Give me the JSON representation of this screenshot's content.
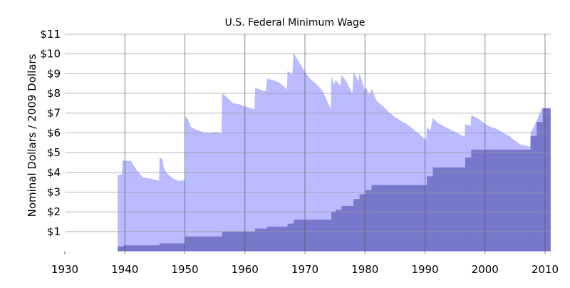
{
  "chart_data": {
    "type": "area",
    "title": "U.S. Federal Minimum Wage",
    "ylabel": "Nominal Dollars  /  2009 Dollars",
    "xlabel": "",
    "xlim": [
      1930,
      2011
    ],
    "ylim": [
      0,
      11
    ],
    "grid": true,
    "x_ticks": [
      "1930",
      "1940",
      "1950",
      "1960",
      "1970",
      "1980",
      "1990",
      "2000",
      "2010"
    ],
    "y_ticks": [
      "$1",
      "$2",
      "$3",
      "$4",
      "$5",
      "$6",
      "$7",
      "$8",
      "$9",
      "$10",
      "$11"
    ],
    "colors": {
      "real": "#babaff",
      "nominal": "#7777cc",
      "grid": "#999999"
    },
    "series": [
      {
        "key": "real_2009_dollars",
        "style": "line-area",
        "points": [
          [
            1938.8,
            3.85
          ],
          [
            1939.5,
            3.9
          ],
          [
            1939.6,
            4.6
          ],
          [
            1941,
            4.58
          ],
          [
            1942,
            4.1
          ],
          [
            1943,
            3.75
          ],
          [
            1944,
            3.7
          ],
          [
            1945.7,
            3.58
          ],
          [
            1945.8,
            4.75
          ],
          [
            1946.3,
            4.65
          ],
          [
            1946.5,
            4.2
          ],
          [
            1947,
            3.95
          ],
          [
            1948,
            3.7
          ],
          [
            1949,
            3.55
          ],
          [
            1949.5,
            3.6
          ],
          [
            1950,
            3.6
          ],
          [
            1950,
            6.85
          ],
          [
            1950.5,
            6.7
          ],
          [
            1951,
            6.3
          ],
          [
            1952,
            6.15
          ],
          [
            1953,
            6.05
          ],
          [
            1954,
            6.0
          ],
          [
            1955,
            6.05
          ],
          [
            1956.1,
            6.0
          ],
          [
            1956.2,
            8.0
          ],
          [
            1957,
            7.8
          ],
          [
            1958,
            7.5
          ],
          [
            1959,
            7.45
          ],
          [
            1960,
            7.35
          ],
          [
            1961.6,
            7.2
          ],
          [
            1961.7,
            8.3
          ],
          [
            1962,
            8.25
          ],
          [
            1963.5,
            8.1
          ],
          [
            1963.7,
            8.75
          ],
          [
            1965,
            8.65
          ],
          [
            1966,
            8.5
          ],
          [
            1967,
            8.2
          ],
          [
            1967.1,
            9.15
          ],
          [
            1967.9,
            8.95
          ],
          [
            1968.1,
            10.05
          ],
          [
            1969,
            9.6
          ],
          [
            1970,
            9.1
          ],
          [
            1971,
            8.7
          ],
          [
            1972,
            8.45
          ],
          [
            1973,
            8.1
          ],
          [
            1974.3,
            7.2
          ],
          [
            1974.4,
            8.85
          ],
          [
            1974.9,
            8.45
          ],
          [
            1975.1,
            8.7
          ],
          [
            1975.9,
            8.4
          ],
          [
            1976.1,
            8.95
          ],
          [
            1977,
            8.55
          ],
          [
            1977.9,
            8.0
          ],
          [
            1978.1,
            9.1
          ],
          [
            1978.9,
            8.6
          ],
          [
            1979.1,
            9.05
          ],
          [
            1979.9,
            8.2
          ],
          [
            1980.1,
            8.3
          ],
          [
            1980.8,
            7.95
          ],
          [
            1981.1,
            8.25
          ],
          [
            1982,
            7.6
          ],
          [
            1983,
            7.35
          ],
          [
            1984,
            7.05
          ],
          [
            1985,
            6.8
          ],
          [
            1986,
            6.6
          ],
          [
            1987,
            6.45
          ],
          [
            1988,
            6.2
          ],
          [
            1989,
            5.95
          ],
          [
            1990.2,
            5.65
          ],
          [
            1990.3,
            6.3
          ],
          [
            1990.9,
            6.1
          ],
          [
            1991.3,
            6.75
          ],
          [
            1992,
            6.55
          ],
          [
            1993,
            6.35
          ],
          [
            1994,
            6.2
          ],
          [
            1995,
            6.05
          ],
          [
            1996.6,
            5.8
          ],
          [
            1996.7,
            6.45
          ],
          [
            1997.6,
            6.35
          ],
          [
            1997.7,
            6.9
          ],
          [
            1999,
            6.7
          ],
          [
            2000,
            6.45
          ],
          [
            2001,
            6.3
          ],
          [
            2002,
            6.2
          ],
          [
            2003,
            6.0
          ],
          [
            2004,
            5.85
          ],
          [
            2005,
            5.6
          ],
          [
            2006,
            5.4
          ],
          [
            2007.5,
            5.3
          ],
          [
            2007.6,
            6.0
          ],
          [
            2008.5,
            6.55
          ],
          [
            2009.5,
            7.25
          ],
          [
            2010.9,
            7.25
          ]
        ]
      },
      {
        "key": "nominal_dollars",
        "style": "step-area",
        "end": 2010.9,
        "points": [
          [
            1938.8,
            0.25
          ],
          [
            1939.8,
            0.3
          ],
          [
            1945.8,
            0.4
          ],
          [
            1950.0,
            0.75
          ],
          [
            1956.2,
            1.0
          ],
          [
            1961.7,
            1.15
          ],
          [
            1963.7,
            1.25
          ],
          [
            1967.1,
            1.4
          ],
          [
            1968.1,
            1.6
          ],
          [
            1974.4,
            2.0
          ],
          [
            1975.1,
            2.1
          ],
          [
            1976.1,
            2.3
          ],
          [
            1978.1,
            2.65
          ],
          [
            1979.1,
            2.9
          ],
          [
            1980.1,
            3.1
          ],
          [
            1981.1,
            3.35
          ],
          [
            1990.3,
            3.8
          ],
          [
            1991.3,
            4.25
          ],
          [
            1996.7,
            4.75
          ],
          [
            1997.7,
            5.15
          ],
          [
            2007.6,
            5.85
          ],
          [
            2008.6,
            6.55
          ],
          [
            2009.6,
            7.25
          ]
        ]
      }
    ]
  }
}
